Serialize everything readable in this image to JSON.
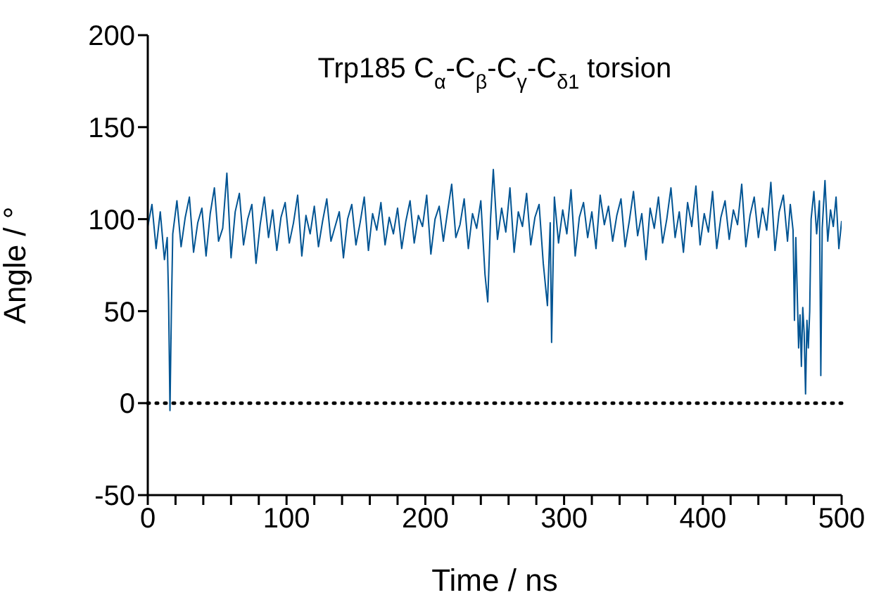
{
  "chart_data": {
    "type": "line",
    "title": "Trp185 C$_{α}$-C$_{β}$-C$_{γ}$-C$_{δ1}$ torsion",
    "xlabel": "Time / ns",
    "ylabel": "Angle / °",
    "x": [
      0,
      3,
      6,
      9,
      12,
      14,
      15,
      16,
      17,
      18,
      21,
      24,
      27,
      30,
      33,
      36,
      39,
      42,
      45,
      48,
      51,
      54,
      57,
      60,
      63,
      66,
      69,
      72,
      75,
      78,
      81,
      84,
      87,
      90,
      93,
      96,
      99,
      102,
      105,
      108,
      111,
      114,
      117,
      120,
      123,
      126,
      129,
      132,
      135,
      138,
      141,
      144,
      147,
      150,
      153,
      156,
      159,
      162,
      165,
      168,
      171,
      174,
      177,
      180,
      183,
      186,
      189,
      192,
      195,
      198,
      201,
      204,
      207,
      210,
      213,
      216,
      219,
      222,
      225,
      228,
      231,
      234,
      237,
      240,
      243,
      245,
      247,
      249,
      252,
      255,
      258,
      261,
      264,
      267,
      270,
      273,
      276,
      279,
      282,
      285,
      288,
      290,
      291,
      293,
      296,
      299,
      302,
      305,
      308,
      311,
      314,
      317,
      320,
      323,
      326,
      329,
      332,
      335,
      338,
      341,
      344,
      347,
      350,
      353,
      356,
      359,
      362,
      365,
      368,
      371,
      374,
      377,
      380,
      383,
      386,
      389,
      392,
      395,
      398,
      401,
      404,
      407,
      410,
      413,
      416,
      419,
      422,
      425,
      428,
      431,
      434,
      437,
      440,
      443,
      446,
      449,
      452,
      455,
      458,
      461,
      463,
      465,
      466,
      467,
      468,
      469,
      470,
      471,
      472,
      473,
      474,
      475,
      476,
      477,
      478,
      480,
      482,
      484,
      485,
      486,
      488,
      490,
      492,
      494,
      496,
      498,
      500
    ],
    "series": [
      {
        "color": "#005493",
        "values": [
          96,
          108,
          84,
          104,
          78,
          90,
          56,
          -4,
          50,
          92,
          110,
          85,
          101,
          112,
          82,
          98,
          106,
          80,
          103,
          117,
          88,
          95,
          125,
          79,
          104,
          114,
          86,
          100,
          108,
          76,
          97,
          112,
          90,
          105,
          83,
          101,
          109,
          87,
          98,
          113,
          80,
          102,
          92,
          107,
          85,
          99,
          111,
          88,
          96,
          104,
          79,
          100,
          108,
          86,
          98,
          112,
          83,
          103,
          94,
          109,
          86,
          101,
          92,
          106,
          84,
          99,
          110,
          87,
          102,
          96,
          113,
          81,
          100,
          107,
          88,
          104,
          119,
          90,
          97,
          111,
          84,
          103,
          95,
          110,
          70,
          55,
          100,
          127,
          89,
          106,
          93,
          117,
          82,
          104,
          96,
          114,
          86,
          101,
          108,
          76,
          53,
          98,
          33,
          112,
          87,
          105,
          92,
          116,
          80,
          101,
          109,
          90,
          104,
          84,
          113,
          97,
          107,
          88,
          102,
          111,
          85,
          99,
          115,
          91,
          103,
          78,
          106,
          95,
          112,
          87,
          100,
          117,
          90,
          104,
          82,
          109,
          96,
          118,
          86,
          103,
          93,
          115,
          84,
          101,
          110,
          89,
          105,
          97,
          119,
          85,
          102,
          112,
          90,
          106,
          94,
          120,
          83,
          104,
          113,
          88,
          108,
          94,
          45,
          90,
          60,
          30,
          48,
          20,
          52,
          38,
          5,
          45,
          30,
          50,
          100,
          115,
          92,
          110,
          15,
          95,
          121,
          88,
          105,
          96,
          112,
          84,
          99
        ]
      }
    ],
    "xlim": [
      0,
      500
    ],
    "xticks": [
      0,
      {
        "value": 20,
        "label": null
      },
      {
        "value": 40,
        "label": null
      },
      {
        "value": 60,
        "label": null
      },
      {
        "value": 80,
        "label": null
      },
      100,
      {
        "value": 120,
        "label": null
      },
      {
        "value": 140,
        "label": null
      },
      {
        "value": 160,
        "label": null
      },
      {
        "value": 180,
        "label": null
      },
      200,
      {
        "value": 220,
        "label": null
      },
      {
        "value": 240,
        "label": null
      },
      {
        "value": 260,
        "label": null
      },
      {
        "value": 280,
        "label": null
      },
      300,
      {
        "value": 320,
        "label": null
      },
      {
        "value": 340,
        "label": null
      },
      {
        "value": 360,
        "label": null
      },
      {
        "value": 380,
        "label": null
      },
      400,
      {
        "value": 420,
        "label": null
      },
      {
        "value": 440,
        "label": null
      },
      {
        "value": 460,
        "label": null
      },
      {
        "value": 480,
        "label": null
      },
      500
    ],
    "ylim": [
      -50,
      200
    ],
    "yticks": [
      -50,
      0,
      50,
      100,
      150,
      200
    ],
    "ref_lines": [
      {
        "axis": "y",
        "value": 0,
        "color": "#000000",
        "line_style": "dotted"
      }
    ],
    "grid": false,
    "legend": false,
    "marker": "none",
    "line_style": "solid"
  }
}
